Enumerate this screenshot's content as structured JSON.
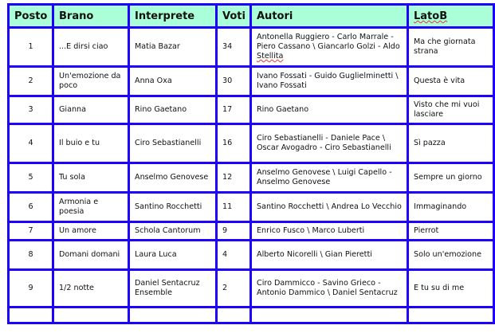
{
  "table": {
    "headers": [
      "Posto",
      "Brano",
      "Interprete",
      "Voti",
      "Autori",
      "LatoB"
    ],
    "rows": [
      {
        "posto": "1",
        "brano": "...E dirsi ciao",
        "interprete": "Matia Bazar",
        "voti": "34",
        "autori": "Antonella Ruggiero - Carlo Marrale - Piero Cassano \\ Giancarlo Golzi - Aldo Stellita",
        "latob": "Ma che giornata strana"
      },
      {
        "posto": "2",
        "brano": "Un'emozione da poco",
        "interprete": "Anna Oxa",
        "voti": "30",
        "autori": "Ivano Fossati - Guido Guglielminetti \\ Ivano Fossati",
        "latob": "Questa è vita"
      },
      {
        "posto": "3",
        "brano": "Gianna",
        "interprete": "Rino Gaetano",
        "voti": "17",
        "autori": "Rino Gaetano",
        "latob": "Visto che mi vuoi lasciare"
      },
      {
        "posto": "4",
        "brano": "Il buio e tu",
        "interprete": "Ciro Sebastianelli",
        "voti": "16",
        "autori": "Ciro Sebastianelli - Daniele Pace \\ Oscar Avogadro - Ciro Sebastianelli",
        "latob": "Sì pazza"
      },
      {
        "posto": "5",
        "brano": "Tu sola",
        "interprete": "Anselmo Genovese",
        "voti": "12",
        "autori": "Anselmo Genovese \\ Luigi Capello - Anselmo Genovese",
        "latob": "Sempre un giorno"
      },
      {
        "posto": "6",
        "brano": "Armonia e poesia",
        "interprete": "Santino Rocchetti",
        "voti": "11",
        "autori": "Santino Rocchetti \\ Andrea Lo Vecchio",
        "latob": "Immaginando"
      },
      {
        "posto": "7",
        "brano": "Un amore",
        "interprete": "Schola Cantorum",
        "voti": "9",
        "autori": "Enrico Fusco \\ Marco Luberti",
        "latob": "Pierrot"
      },
      {
        "posto": "8",
        "brano": "Domani domani",
        "interprete": "Laura Luca",
        "voti": "4",
        "autori": "Alberto Nicorelli \\ Gian Pieretti",
        "latob": "Solo un'emozione"
      },
      {
        "posto": "9",
        "brano": "1/2 notte",
        "interprete": "Daniel Sentacruz Ensemble",
        "voti": "2",
        "autori": "Ciro Dammicco - Savino Grieco - Antonio Dammico \\ Daniel Sentacruz",
        "latob": "E tu su di me"
      }
    ]
  }
}
